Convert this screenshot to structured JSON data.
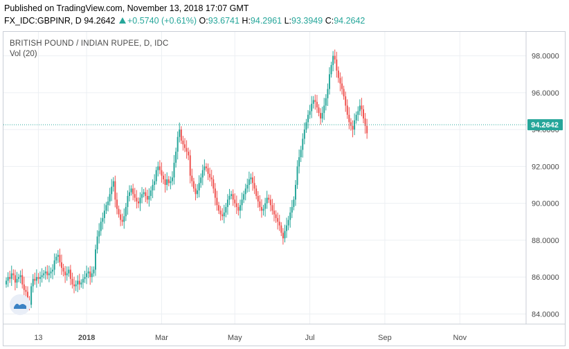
{
  "header": {
    "published": "Published on TradingView.com, November 13, 2018 17:07 GMT",
    "symbol_line": "FX_IDC:GBPINR, D",
    "last": "94.2642",
    "change": "+0.5740 (+0.61%)",
    "open_label": "O:",
    "open": "93.6741",
    "high_label": "H:",
    "high": "94.2961",
    "low_label": "L:",
    "low": "93.3949",
    "close_label": "C:",
    "close": "94.2642"
  },
  "legend": {
    "title": "BRITISH POUND / INDIAN RUPEE, D, IDC",
    "volume": "Vol (20)"
  },
  "colors": {
    "up": "#26a69a",
    "down": "#ef5350",
    "grid": "#eceff3",
    "price_line": "#26a69a"
  },
  "chart_data": {
    "type": "candlestick",
    "title": "BRITISH POUND / INDIAN RUPEE, D, IDC",
    "y_ticks": [
      "84.0000",
      "86.0000",
      "88.0000",
      "90.0000",
      "92.0000",
      "94.0000",
      "96.0000",
      "98.0000"
    ],
    "ylim": [
      83.45,
      99.3
    ],
    "x_ticks": [
      "13",
      "2018",
      "Mar",
      "May",
      "Jul",
      "Sep",
      "Nov"
    ],
    "x_tick_bars": [
      18,
      45,
      87,
      128,
      170,
      212,
      254
    ],
    "current_price_label": "94.2642",
    "current_price": 94.2642,
    "grid": true,
    "close_series": [
      85.8,
      86.0,
      85.9,
      86.2,
      86.1,
      85.7,
      85.9,
      86.0,
      86.1,
      85.6,
      85.3,
      85.2,
      84.6,
      84.5,
      85.5,
      85.9,
      85.8,
      86.0,
      85.9,
      86.0,
      86.1,
      86.2,
      86.3,
      86.1,
      86.2,
      86.3,
      86.4,
      86.9,
      87.1,
      87.2,
      86.8,
      86.5,
      86.3,
      86.1,
      86.2,
      86.4,
      85.9,
      85.6,
      85.5,
      85.6,
      85.8,
      85.6,
      85.7,
      85.9,
      86.0,
      86.2,
      86.3,
      86.0,
      86.2,
      86.4,
      87.5,
      88.2,
      88.5,
      89.0,
      89.2,
      89.6,
      89.9,
      90.1,
      90.5,
      90.9,
      91.2,
      90.2,
      89.7,
      89.4,
      89.1,
      89.0,
      89.3,
      89.8,
      90.4,
      90.6,
      90.8,
      90.5,
      90.3,
      90.1,
      90.0,
      90.3,
      90.5,
      90.6,
      90.4,
      90.2,
      90.4,
      90.7,
      91.0,
      91.2,
      91.8,
      92.0,
      91.8,
      91.5,
      91.3,
      91.0,
      91.3,
      91.1,
      91.2,
      91.4,
      92.2,
      92.8,
      93.6,
      94.0,
      93.4,
      93.2,
      93.0,
      92.8,
      92.6,
      91.5,
      91.2,
      90.8,
      90.5,
      90.7,
      91.1,
      91.4,
      91.8,
      92.0,
      91.9,
      91.6,
      91.4,
      91.3,
      90.8,
      90.3,
      89.9,
      89.6,
      89.4,
      89.3,
      89.5,
      89.8,
      90.2,
      90.4,
      90.5,
      90.2,
      90.0,
      89.8,
      89.6,
      89.9,
      90.2,
      90.5,
      90.8,
      91.0,
      91.3,
      91.4,
      91.1,
      90.8,
      90.4,
      90.1,
      89.8,
      89.6,
      89.7,
      90.0,
      90.3,
      90.2,
      89.9,
      89.6,
      89.4,
      89.2,
      89.0,
      88.8,
      88.4,
      88.1,
      88.5,
      88.8,
      89.1,
      89.5,
      89.8,
      90.2,
      91.0,
      92.0,
      92.5,
      92.9,
      93.5,
      94.0,
      94.4,
      94.8,
      95.0,
      95.4,
      95.6,
      95.5,
      95.2,
      94.9,
      94.6,
      94.9,
      95.3,
      95.7,
      96.2,
      97.0,
      97.5,
      98.0,
      97.8,
      97.2,
      96.8,
      96.5,
      96.2,
      95.8,
      95.3,
      94.8,
      94.4,
      94.2,
      94.0,
      94.5,
      94.8,
      95.0,
      95.3,
      95.1,
      94.6,
      94.2,
      93.8
    ]
  }
}
